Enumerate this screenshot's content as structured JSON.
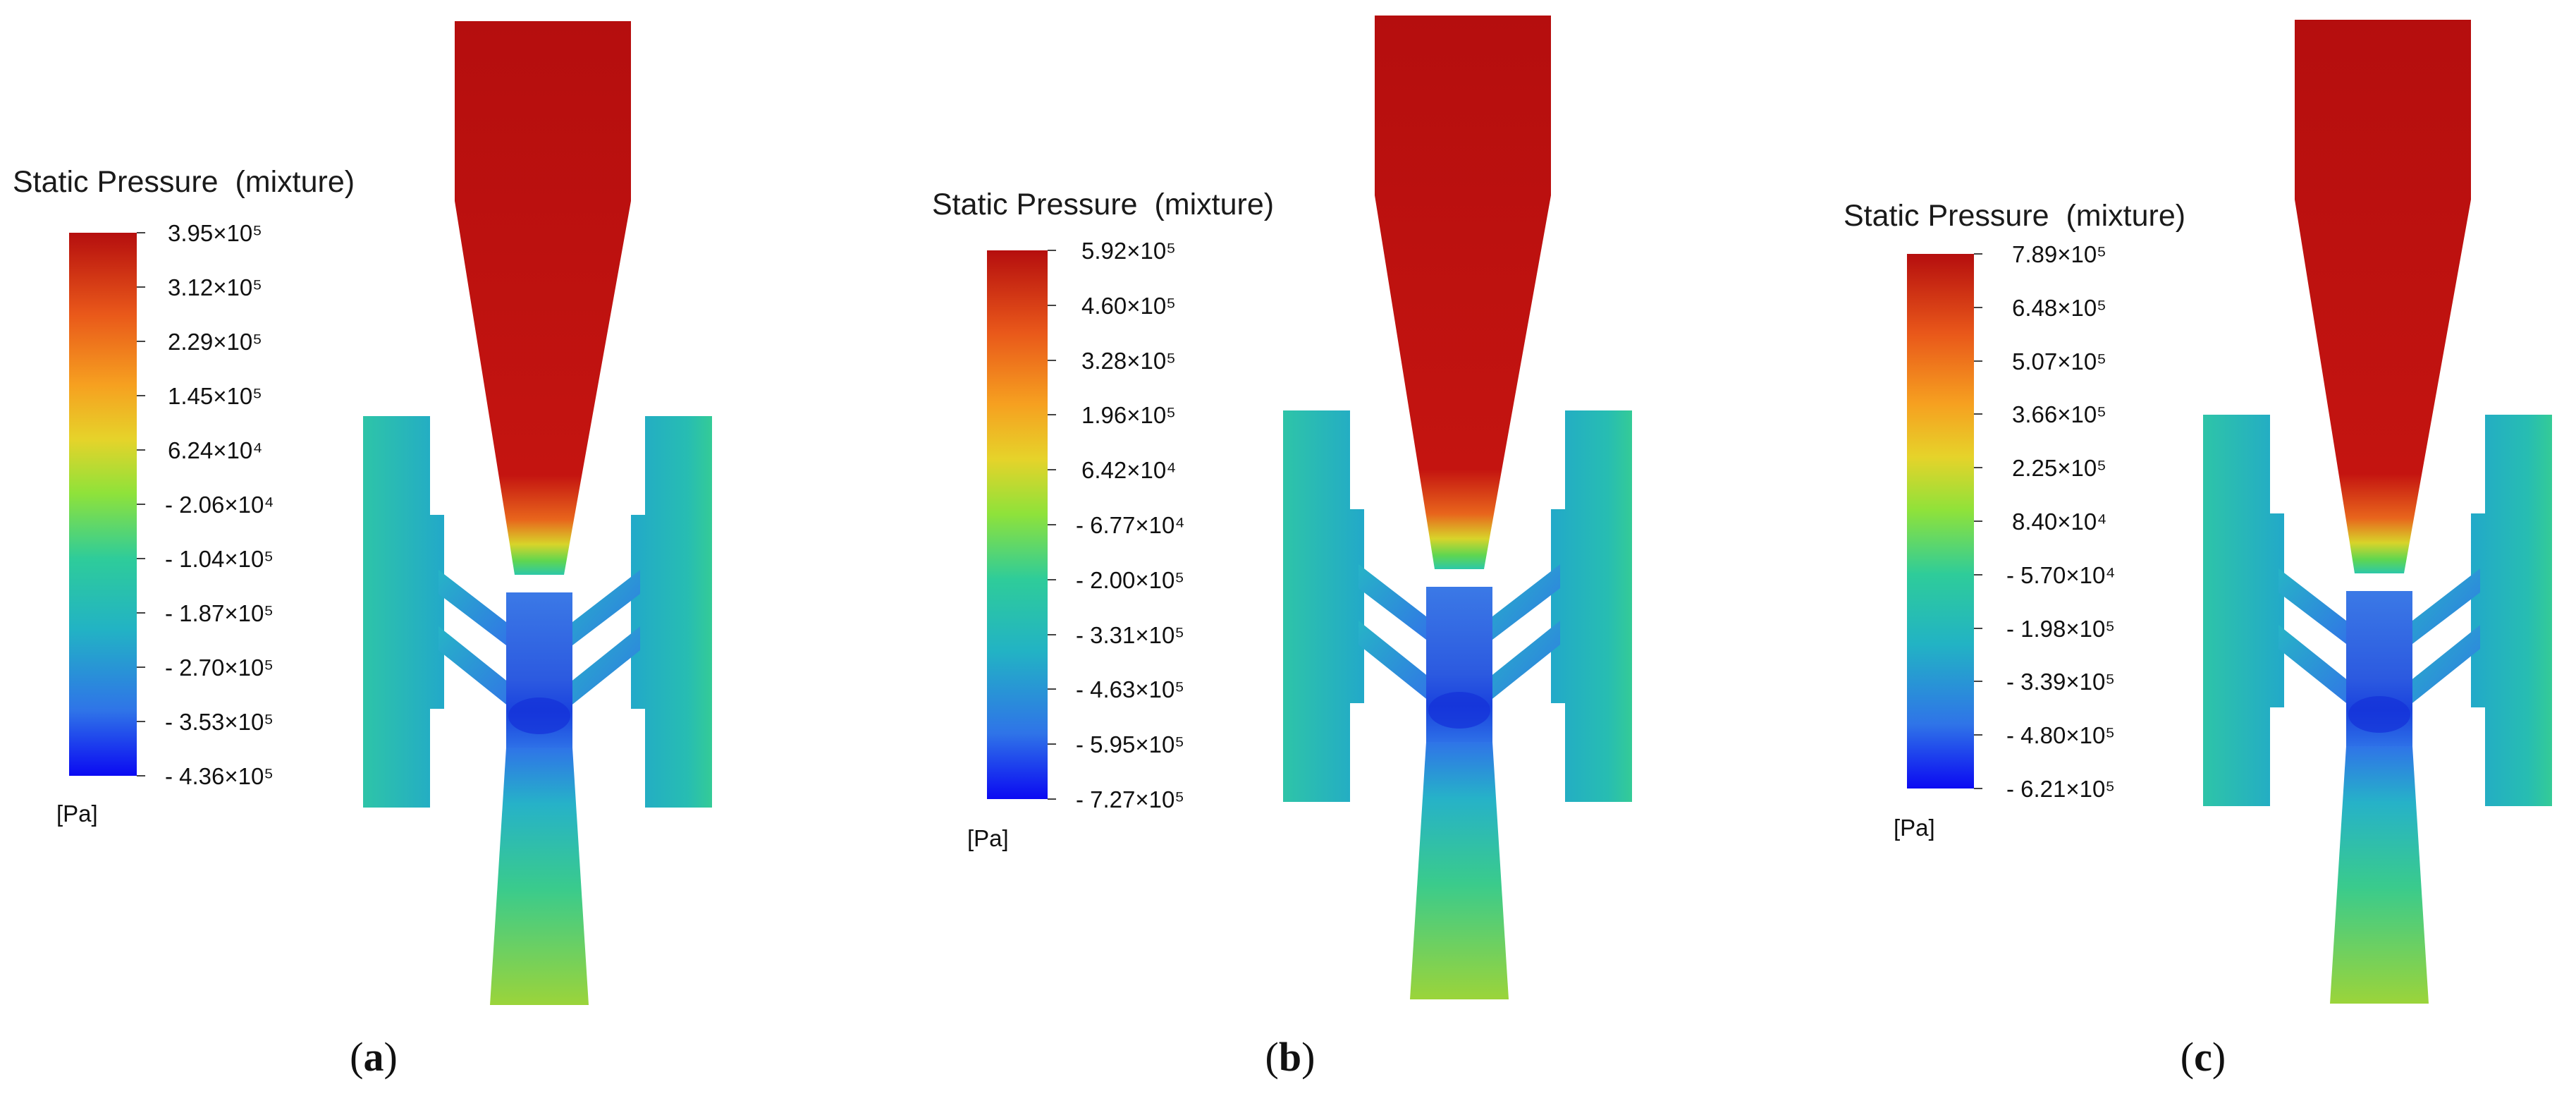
{
  "panels": [
    {
      "id": "a",
      "caption": "a",
      "legend": {
        "title": "Static Pressure  (mixture)",
        "unit": "[Pa]",
        "ticks": [
          "3.95×10⁵",
          "3.12×10⁵",
          "2.29×10⁵",
          "1.45×10⁵",
          "6.24×10⁴",
          "- 2.06×10⁴",
          "- 1.04×10⁵",
          "- 1.87×10⁵",
          "- 2.70×10⁵",
          "- 3.53×10⁵",
          "- 4.36×10⁵"
        ]
      }
    },
    {
      "id": "b",
      "caption": "b",
      "legend": {
        "title": "Static Pressure  (mixture)",
        "unit": "[Pa]",
        "ticks": [
          "5.92×10⁵",
          "4.60×10⁵",
          "3.28×10⁵",
          "1.96×10⁵",
          "6.42×10⁴",
          "- 6.77×10⁴",
          "- 2.00×10⁵",
          "- 3.31×10⁵",
          "- 4.63×10⁵",
          "- 5.95×10⁵",
          "- 7.27×10⁵"
        ]
      }
    },
    {
      "id": "c",
      "caption": "c",
      "legend": {
        "title": "Static Pressure  (mixture)",
        "unit": "[Pa]",
        "ticks": [
          "7.89×10⁵",
          "6.48×10⁵",
          "5.07×10⁵",
          "3.66×10⁵",
          "2.25×10⁵",
          "8.40×10⁴",
          "- 5.70×10⁴",
          "- 1.98×10⁵",
          "- 3.39×10⁵",
          "- 4.80×10⁵",
          "- 6.21×10⁵"
        ]
      }
    }
  ],
  "colormap": {
    "name": "rainbow",
    "stops": [
      "#0b0af2",
      "#2f74e8",
      "#22b3c4",
      "#2ecc9a",
      "#8fe23a",
      "#e6d32a",
      "#f6a020",
      "#e9581a",
      "#b50e0e"
    ]
  },
  "field_colors": {
    "high": "#b50e0e",
    "chamber": "#26c0b0",
    "throat": "#3b7ae6",
    "low": "#1a45e0",
    "exit": "#9bd43a"
  }
}
